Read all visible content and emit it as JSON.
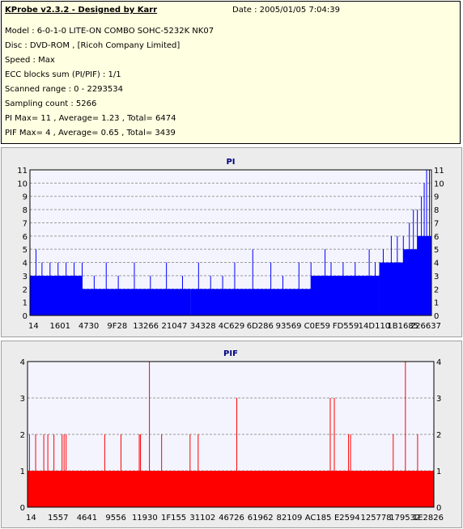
{
  "header": {
    "title": "KProbe v2.3.2 - Designed by Karr",
    "date": "Date : 2005/01/05 7:04:39",
    "lines": [
      "Model : 6-0-1-0 LITE-ON COMBO SOHC-5232K NK07",
      "Disc : DVD-ROM ,  [Ricoh Company Limited]",
      "Speed : Max",
      "ECC blocks sum (PI/PIF) : 1/1",
      "Scanned range : 0 - 2293534",
      "Sampling count : 5266",
      "PI Max= 11 , Average= 1.23 , Total= 6474",
      "PIF Max= 4 , Average= 0.65 , Total= 3439"
    ]
  },
  "chart_data": [
    {
      "type": "bar",
      "title": "PI",
      "color": "#0000ff",
      "ylim": [
        0,
        11
      ],
      "yticks": [
        0,
        1,
        2,
        3,
        4,
        5,
        6,
        7,
        8,
        9,
        10,
        11
      ],
      "xtick_labels": [
        "14",
        "1601",
        "4730",
        "9F28",
        "13266",
        "21047",
        "34328",
        "4C629",
        "6D286",
        "93569",
        "C0E59",
        "FD559",
        "14D110",
        "1B1685",
        "226637"
      ],
      "grid": true,
      "baseline": [
        {
          "from": 0.0,
          "to": 0.13,
          "value": 3
        },
        {
          "from": 0.13,
          "to": 0.4,
          "value": 2
        },
        {
          "from": 0.4,
          "to": 0.7,
          "value": 2
        },
        {
          "from": 0.7,
          "to": 0.87,
          "value": 3
        },
        {
          "from": 0.87,
          "to": 0.93,
          "value": 4
        },
        {
          "from": 0.93,
          "to": 0.965,
          "value": 5
        },
        {
          "from": 0.965,
          "to": 1.0,
          "value": 6
        }
      ],
      "spikes": [
        {
          "x": 0.015,
          "value": 5
        },
        {
          "x": 0.03,
          "value": 4
        },
        {
          "x": 0.05,
          "value": 4
        },
        {
          "x": 0.07,
          "value": 4
        },
        {
          "x": 0.09,
          "value": 4
        },
        {
          "x": 0.11,
          "value": 4
        },
        {
          "x": 0.13,
          "value": 4
        },
        {
          "x": 0.16,
          "value": 3
        },
        {
          "x": 0.19,
          "value": 4
        },
        {
          "x": 0.22,
          "value": 3
        },
        {
          "x": 0.26,
          "value": 4
        },
        {
          "x": 0.3,
          "value": 3
        },
        {
          "x": 0.34,
          "value": 4
        },
        {
          "x": 0.38,
          "value": 3
        },
        {
          "x": 0.42,
          "value": 4
        },
        {
          "x": 0.45,
          "value": 3
        },
        {
          "x": 0.48,
          "value": 3
        },
        {
          "x": 0.51,
          "value": 4
        },
        {
          "x": 0.555,
          "value": 5
        },
        {
          "x": 0.6,
          "value": 4
        },
        {
          "x": 0.63,
          "value": 3
        },
        {
          "x": 0.67,
          "value": 4
        },
        {
          "x": 0.7,
          "value": 4
        },
        {
          "x": 0.735,
          "value": 5
        },
        {
          "x": 0.75,
          "value": 4
        },
        {
          "x": 0.78,
          "value": 4
        },
        {
          "x": 0.81,
          "value": 4
        },
        {
          "x": 0.845,
          "value": 5
        },
        {
          "x": 0.86,
          "value": 4
        },
        {
          "x": 0.88,
          "value": 5
        },
        {
          "x": 0.9,
          "value": 6
        },
        {
          "x": 0.915,
          "value": 6
        },
        {
          "x": 0.93,
          "value": 6
        },
        {
          "x": 0.945,
          "value": 7
        },
        {
          "x": 0.955,
          "value": 8
        },
        {
          "x": 0.965,
          "value": 8
        },
        {
          "x": 0.975,
          "value": 9
        },
        {
          "x": 0.982,
          "value": 10
        },
        {
          "x": 0.988,
          "value": 11
        },
        {
          "x": 0.995,
          "value": 11
        }
      ]
    },
    {
      "type": "bar",
      "title": "PIF",
      "color": "#ff0000",
      "ylim": [
        0,
        4
      ],
      "yticks": [
        0,
        1,
        2,
        3,
        4
      ],
      "xtick_labels": [
        "14",
        "1557",
        "4641",
        "9556",
        "11930",
        "1F155",
        "31102",
        "46726",
        "61962",
        "82109",
        "AC185",
        "E2594",
        "125778",
        "179532",
        "1E2826"
      ],
      "grid": true,
      "baseline": [
        {
          "from": 0.0,
          "to": 1.0,
          "value": 1
        }
      ],
      "spikes": [
        {
          "x": 0.005,
          "value": 2
        },
        {
          "x": 0.02,
          "value": 2
        },
        {
          "x": 0.04,
          "value": 2
        },
        {
          "x": 0.05,
          "value": 2
        },
        {
          "x": 0.065,
          "value": 2
        },
        {
          "x": 0.085,
          "value": 2
        },
        {
          "x": 0.09,
          "value": 2
        },
        {
          "x": 0.095,
          "value": 2
        },
        {
          "x": 0.19,
          "value": 2
        },
        {
          "x": 0.23,
          "value": 2
        },
        {
          "x": 0.275,
          "value": 2
        },
        {
          "x": 0.278,
          "value": 2
        },
        {
          "x": 0.3,
          "value": 4
        },
        {
          "x": 0.33,
          "value": 2
        },
        {
          "x": 0.4,
          "value": 2
        },
        {
          "x": 0.42,
          "value": 2
        },
        {
          "x": 0.515,
          "value": 3
        },
        {
          "x": 0.745,
          "value": 3
        },
        {
          "x": 0.755,
          "value": 3
        },
        {
          "x": 0.79,
          "value": 2
        },
        {
          "x": 0.795,
          "value": 2
        },
        {
          "x": 0.9,
          "value": 2
        },
        {
          "x": 0.93,
          "value": 4
        },
        {
          "x": 0.96,
          "value": 2
        }
      ]
    }
  ]
}
